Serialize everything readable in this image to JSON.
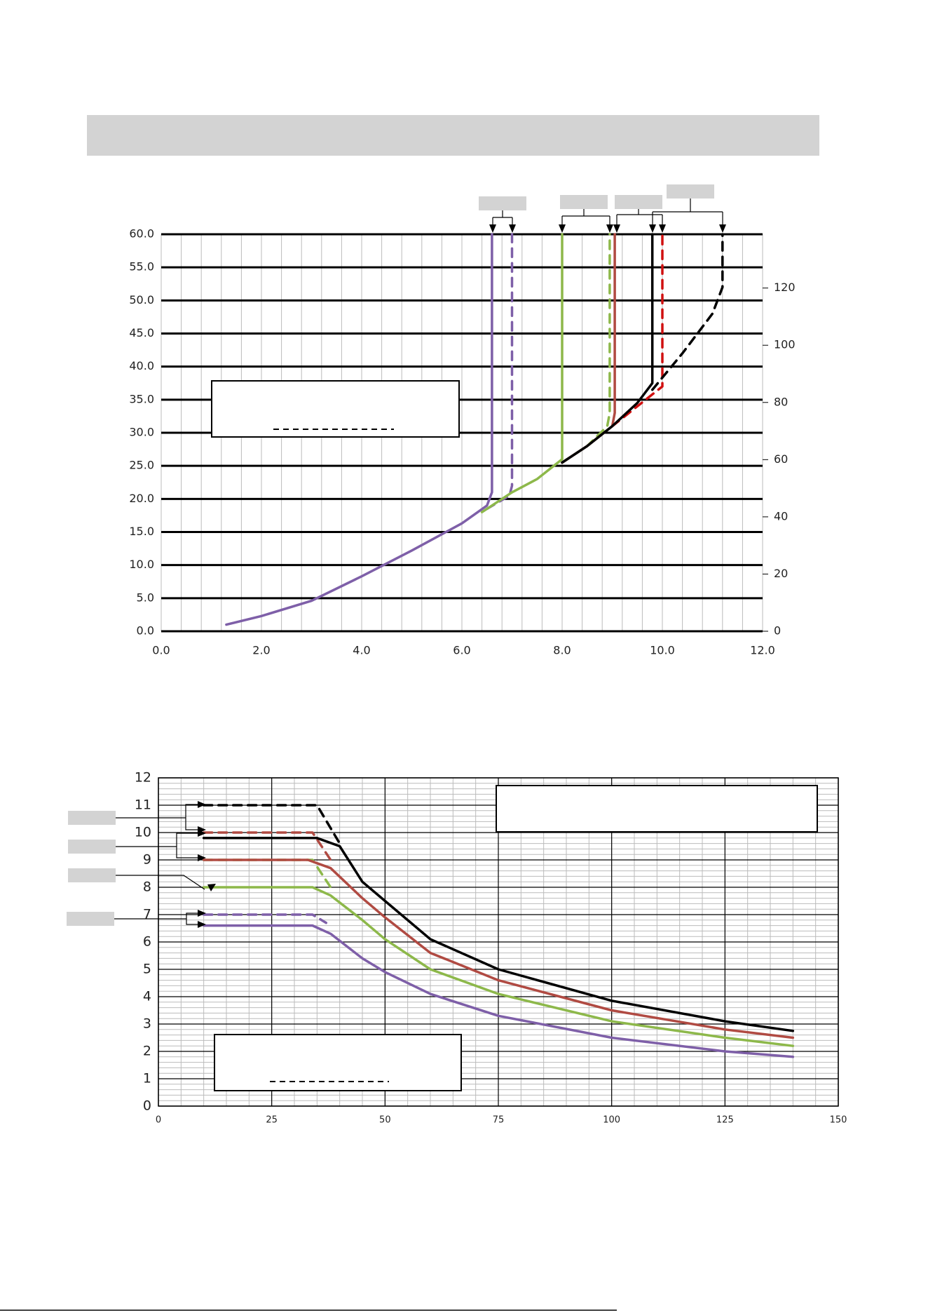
{
  "chart_data": [
    {
      "type": "line",
      "xlim": [
        0,
        12
      ],
      "ylim": [
        0,
        60
      ],
      "y2lim": [
        0,
        138.8
      ],
      "xticks": [
        {
          "value": 0,
          "label": "0.0"
        },
        {
          "value": 2,
          "label": "2.0"
        },
        {
          "value": 4,
          "label": "4.0"
        },
        {
          "value": 6,
          "label": "6.0"
        },
        {
          "value": 8,
          "label": "8.0"
        },
        {
          "value": 10,
          "label": "10.0"
        },
        {
          "value": 12,
          "label": "12.0"
        }
      ],
      "yticks": [
        {
          "value": 0,
          "label": "0.0"
        },
        {
          "value": 5,
          "label": "5.0"
        },
        {
          "value": 10,
          "label": "10.0"
        },
        {
          "value": 15,
          "label": "15.0"
        },
        {
          "value": 20,
          "label": "20.0"
        },
        {
          "value": 25,
          "label": "25.0"
        },
        {
          "value": 30,
          "label": "30.0"
        },
        {
          "value": 35,
          "label": "35.0"
        },
        {
          "value": 40,
          "label": "40.0"
        },
        {
          "value": 45,
          "label": "45.0"
        },
        {
          "value": 50,
          "label": "50.0"
        },
        {
          "value": 55,
          "label": "55.0"
        },
        {
          "value": 60,
          "label": "60.0"
        }
      ],
      "y2ticks": [
        0,
        20,
        40,
        60,
        80,
        100,
        120
      ],
      "grid": true,
      "series": [
        {
          "color": "#7e5fa8",
          "dashed": false,
          "x": [
            1.3,
            2,
            3,
            4,
            5,
            6,
            6.5,
            6.6,
            6.6
          ],
          "values": [
            1,
            2.3,
            4.6,
            8.3,
            12.2,
            16.3,
            19,
            21,
            60
          ]
        },
        {
          "color": "#7e5fa8",
          "dashed": true,
          "x": [
            6.5,
            6.95,
            7.0,
            7.0
          ],
          "values": [
            18.5,
            20.5,
            22,
            60
          ]
        },
        {
          "color": "#8db84a",
          "dashed": false,
          "x": [
            6.4,
            7,
            7.5,
            8.0,
            8.0
          ],
          "values": [
            18,
            21,
            23,
            26,
            60
          ]
        },
        {
          "color": "#8db84a",
          "dashed": true,
          "x": [
            8.0,
            8.5,
            8.9,
            8.95,
            8.95
          ],
          "values": [
            25.5,
            28,
            31,
            33,
            60
          ]
        },
        {
          "color": "#b04a42",
          "dashed": false,
          "x": [
            8.0,
            8.5,
            9.0,
            9.05,
            9.05
          ],
          "values": [
            25.5,
            28,
            31,
            33,
            60
          ]
        },
        {
          "color": "#d01010",
          "dashed": true,
          "x": [
            9.0,
            9.5,
            10.0,
            10.0
          ],
          "values": [
            31,
            34,
            37,
            60
          ]
        },
        {
          "color": "#000000",
          "dashed": false,
          "x": [
            8.0,
            8.5,
            9.0,
            9.5,
            9.8,
            9.8
          ],
          "values": [
            25.5,
            28,
            31,
            34.5,
            37.5,
            60
          ]
        },
        {
          "color": "#000000",
          "dashed": true,
          "x": [
            9.8,
            10.4,
            11.0,
            11.2,
            11.2
          ],
          "values": [
            36.5,
            42,
            48,
            52,
            60
          ]
        }
      ]
    },
    {
      "type": "line",
      "xlim": [
        0,
        150
      ],
      "ylim": [
        0,
        12
      ],
      "xticks": [
        0,
        25,
        50,
        75,
        100,
        125,
        150
      ],
      "yticks": [
        0,
        1,
        2,
        3,
        4,
        5,
        6,
        7,
        8,
        9,
        10,
        11,
        12
      ],
      "grid": true,
      "series": [
        {
          "color": "#000000",
          "dashed": true,
          "x": [
            10,
            35,
            40
          ],
          "values": [
            11,
            11,
            9.6
          ]
        },
        {
          "color": "#b04a42",
          "dashed": true,
          "x": [
            10,
            34,
            38
          ],
          "values": [
            10,
            10,
            9
          ]
        },
        {
          "color": "#8db84a",
          "dashed": true,
          "x": [
            10,
            34,
            38
          ],
          "values": [
            9,
            9,
            8
          ]
        },
        {
          "color": "#7e5fa8",
          "dashed": true,
          "x": [
            10,
            34,
            37
          ],
          "values": [
            7,
            7,
            6.7
          ]
        },
        {
          "color": "#7e5fa8",
          "dashed": false,
          "x": [
            10,
            34,
            38,
            45,
            50,
            60,
            75,
            100,
            125,
            140
          ],
          "values": [
            6.6,
            6.6,
            6.3,
            5.4,
            4.9,
            4.1,
            3.3,
            2.5,
            2.0,
            1.8
          ]
        },
        {
          "color": "#8db84a",
          "dashed": false,
          "x": [
            10,
            34,
            38,
            45,
            50,
            60,
            75,
            100,
            125,
            140
          ],
          "values": [
            8,
            8,
            7.7,
            6.8,
            6.1,
            5.0,
            4.1,
            3.1,
            2.5,
            2.2
          ]
        },
        {
          "color": "#b04a42",
          "dashed": false,
          "x": [
            10,
            33,
            38,
            45,
            50,
            60,
            75,
            100,
            125,
            140
          ],
          "values": [
            9,
            9,
            8.7,
            7.6,
            6.9,
            5.6,
            4.6,
            3.5,
            2.8,
            2.5
          ]
        },
        {
          "color": "#000000",
          "dashed": false,
          "x": [
            10,
            35,
            40,
            45,
            50,
            60,
            75,
            100,
            125,
            140
          ],
          "values": [
            9.8,
            9.8,
            9.5,
            8.2,
            7.5,
            6.1,
            5.0,
            3.85,
            3.1,
            2.75
          ]
        }
      ]
    }
  ]
}
